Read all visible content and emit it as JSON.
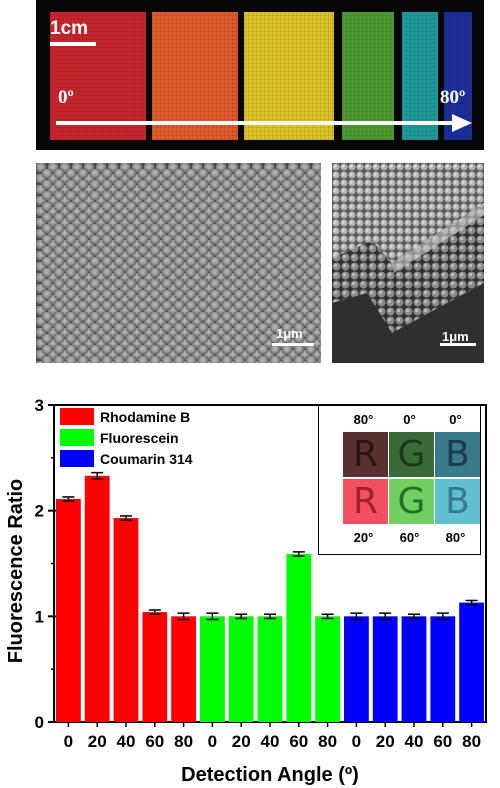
{
  "photo": {
    "scale_label": "1cm",
    "angle_start": "0º",
    "angle_end": "80º",
    "strip_colors": [
      "#c8262d",
      "#e05a2a",
      "#dcc428",
      "#4c9a30",
      "#1f9a9a",
      "#1b2f9c"
    ]
  },
  "sem": {
    "scale_label_top": "1μm",
    "scale_label_cross": "1μm"
  },
  "chart_data": {
    "type": "bar",
    "ylabel": "Fluorescence Ratio",
    "xlabel": "Detection Angle (º)",
    "ylim": [
      0,
      3
    ],
    "yticks": [
      "0",
      "1",
      "2",
      "3"
    ],
    "legend_position": "top-left",
    "series": [
      {
        "name": "Rhodamine B",
        "color": "#ff0000",
        "categories": [
          "0",
          "20",
          "40",
          "60",
          "80"
        ],
        "values": [
          2.11,
          2.33,
          1.93,
          1.04,
          1.0
        ],
        "errors": [
          0.02,
          0.03,
          0.02,
          0.02,
          0.03
        ]
      },
      {
        "name": "Fluorescein",
        "color": "#00ff00",
        "categories": [
          "0",
          "20",
          "40",
          "60",
          "80"
        ],
        "values": [
          1.0,
          1.0,
          1.0,
          1.59,
          1.0
        ],
        "errors": [
          0.03,
          0.02,
          0.02,
          0.02,
          0.02
        ]
      },
      {
        "name": "Coumarin 314",
        "color": "#0000ff",
        "categories": [
          "0",
          "20",
          "40",
          "60",
          "80"
        ],
        "values": [
          1.0,
          1.0,
          1.0,
          1.0,
          1.13
        ],
        "errors": [
          0.03,
          0.03,
          0.02,
          0.03,
          0.02
        ]
      }
    ]
  },
  "inset": {
    "top_labels": [
      "80°",
      "0°",
      "0°"
    ],
    "bottom_labels": [
      "20°",
      "60°",
      "80°"
    ],
    "letters": [
      "R",
      "G",
      "B"
    ],
    "top_colors": [
      "#5a3030",
      "#3a6a3a",
      "#3a7a8a"
    ],
    "bottom_colors": [
      "#f05060",
      "#70d060",
      "#60c0d0"
    ],
    "letter_colors_top": [
      "#2a1515",
      "#1a3a1a",
      "#1a3a55"
    ],
    "letter_colors_bottom": [
      "#a02030",
      "#2a6a2a",
      "#3a7a90"
    ]
  }
}
